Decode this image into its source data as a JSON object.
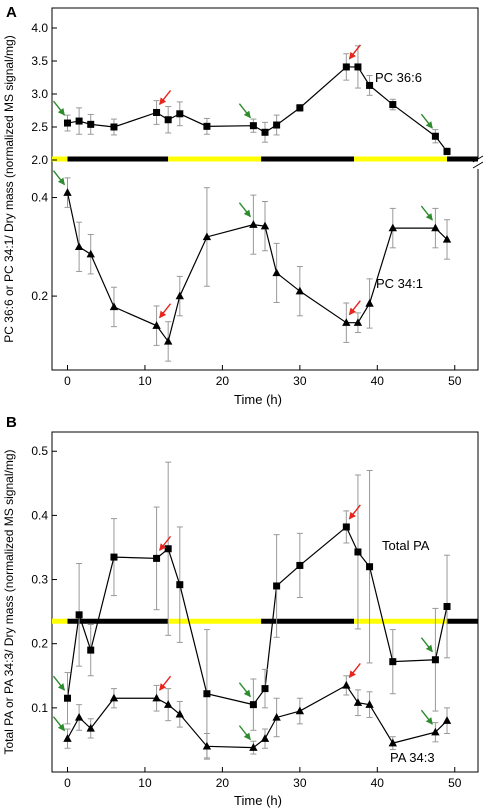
{
  "colors": {
    "line": "#000000",
    "light_bar": "#ffff00",
    "dark_bar": "#000000",
    "arrow_red": "#e8241c",
    "arrow_green": "#2e8b2e",
    "error_bar": "#999999"
  },
  "chart_data": [
    {
      "panel": "A",
      "type": "line",
      "ylabel": "PC 36:6 or PC 34:1/ Dry mass (normalized MS signal/mg)",
      "xlabel": "Time (h)",
      "xlim": [
        -2,
        53
      ],
      "x_ticks": [
        0,
        10,
        20,
        30,
        40,
        50
      ],
      "x_tick_labels": [
        "0",
        "10",
        "20",
        "30",
        "40",
        "50"
      ],
      "axis_break": true,
      "upper_ylim": [
        2.0,
        4.0
      ],
      "upper_y_ticks": [
        2.0,
        2.5,
        3.0,
        3.5,
        4.0
      ],
      "upper_y_tick_labels": [
        "2.0",
        "2.5",
        "3.0",
        "3.5",
        "4.0"
      ],
      "lower_ylim": [
        0.05,
        0.46
      ],
      "lower_y_ticks": [
        0.2,
        0.4
      ],
      "lower_y_tick_labels": [
        "0.2",
        "0.4"
      ],
      "light_dark_bar": [
        {
          "start": -2,
          "end": 0,
          "phase": "light"
        },
        {
          "start": 0,
          "end": 13,
          "phase": "dark"
        },
        {
          "start": 13,
          "end": 25,
          "phase": "light"
        },
        {
          "start": 25,
          "end": 37,
          "phase": "dark"
        },
        {
          "start": 37,
          "end": 49,
          "phase": "light"
        },
        {
          "start": 49,
          "end": 53,
          "phase": "dark"
        }
      ],
      "series": [
        {
          "name": "PC 36:6",
          "marker": "square",
          "part": "upper",
          "x": [
            0,
            1.5,
            3,
            6,
            11.5,
            13,
            14.5,
            18,
            24,
            25.5,
            27,
            30,
            36,
            37.5,
            39,
            42,
            47.5,
            49
          ],
          "y": [
            2.56,
            2.59,
            2.54,
            2.5,
            2.72,
            2.61,
            2.7,
            2.51,
            2.52,
            2.42,
            2.53,
            2.79,
            3.41,
            3.41,
            3.13,
            2.84,
            2.36,
            2.13
          ],
          "err": [
            0.12,
            0.2,
            0.15,
            0.12,
            0.18,
            0.2,
            0.18,
            0.12,
            0.1,
            0.15,
            0.15,
            0.05,
            0.2,
            0.32,
            0.15,
            0.08,
            0.1,
            0.05
          ]
        },
        {
          "name": "PC 34:1",
          "marker": "triangle",
          "part": "lower",
          "x": [
            0,
            1.5,
            3,
            6,
            11.5,
            13,
            14.5,
            18,
            24,
            25.5,
            27,
            30,
            36,
            37.5,
            39,
            42,
            47.5,
            49
          ],
          "y": [
            0.41,
            0.3,
            0.285,
            0.178,
            0.14,
            0.108,
            0.2,
            0.32,
            0.345,
            0.342,
            0.247,
            0.21,
            0.146,
            0.146,
            0.185,
            0.338,
            0.338,
            0.315
          ],
          "err": [
            0.03,
            0.05,
            0.04,
            0.04,
            0.04,
            0.04,
            0.04,
            0.1,
            0.06,
            0.05,
            0.06,
            0.05,
            0.04,
            0.02,
            0.05,
            0.04,
            0.04,
            0.04
          ]
        }
      ],
      "arrows": [
        {
          "x": 0,
          "series": "PC 36:6",
          "color": "green"
        },
        {
          "x": 11.5,
          "series": "PC 36:6",
          "color": "red"
        },
        {
          "x": 24,
          "series": "PC 36:6",
          "color": "green"
        },
        {
          "x": 36,
          "series": "PC 36:6",
          "color": "red"
        },
        {
          "x": 47.5,
          "series": "PC 36:6",
          "color": "green"
        },
        {
          "x": 0,
          "series": "PC 34:1",
          "color": "green"
        },
        {
          "x": 11.5,
          "series": "PC 34:1",
          "color": "red"
        },
        {
          "x": 24,
          "series": "PC 34:1",
          "color": "green"
        },
        {
          "x": 36,
          "series": "PC 34:1",
          "color": "red"
        },
        {
          "x": 47.5,
          "series": "PC 34:1",
          "color": "green"
        }
      ]
    },
    {
      "panel": "B",
      "type": "line",
      "ylabel": "Total PA or PA 34:3/ Dry mass (normalized MS signal/mg)",
      "xlabel": "Time (h)",
      "xlim": [
        -2,
        53
      ],
      "ylim": [
        0.0,
        0.53
      ],
      "x_ticks": [
        0,
        10,
        20,
        30,
        40,
        50
      ],
      "x_tick_labels": [
        "0",
        "10",
        "20",
        "30",
        "40",
        "50"
      ],
      "y_ticks": [
        0.1,
        0.2,
        0.3,
        0.4,
        0.5
      ],
      "y_tick_labels": [
        "0.1",
        "0.2",
        "0.3",
        "0.4",
        "0.5"
      ],
      "light_dark_bar_y": 0.235,
      "light_dark_bar": [
        {
          "start": -2,
          "end": 0,
          "phase": "light"
        },
        {
          "start": 0,
          "end": 13,
          "phase": "dark"
        },
        {
          "start": 13,
          "end": 25,
          "phase": "light"
        },
        {
          "start": 25,
          "end": 37,
          "phase": "dark"
        },
        {
          "start": 37,
          "end": 49,
          "phase": "light"
        },
        {
          "start": 49,
          "end": 53,
          "phase": "dark"
        }
      ],
      "series": [
        {
          "name": "Total PA",
          "marker": "square",
          "x": [
            0,
            1.5,
            3,
            6,
            11.5,
            13,
            14.5,
            18,
            24,
            25.5,
            27,
            30,
            36,
            37.5,
            39,
            42,
            47.5,
            49
          ],
          "y": [
            0.115,
            0.245,
            0.19,
            0.335,
            0.333,
            0.348,
            0.292,
            0.122,
            0.105,
            0.13,
            0.29,
            0.322,
            0.382,
            0.343,
            0.32,
            0.172,
            0.175,
            0.258
          ],
          "err": [
            0.04,
            0.08,
            0.04,
            0.06,
            0.08,
            0.135,
            0.09,
            0.1,
            0.04,
            0.03,
            0.08,
            0.05,
            0.025,
            0.12,
            0.15,
            0.05,
            0.08,
            0.08
          ]
        },
        {
          "name": "PA 34:3",
          "marker": "triangle",
          "x": [
            0,
            1.5,
            3,
            6,
            11.5,
            13,
            14.5,
            18,
            24,
            25.5,
            27,
            30,
            36,
            37.5,
            39,
            42,
            47.5,
            49
          ],
          "y": [
            0.052,
            0.085,
            0.068,
            0.115,
            0.115,
            0.105,
            0.09,
            0.04,
            0.038,
            0.052,
            0.085,
            0.095,
            0.135,
            0.108,
            0.105,
            0.045,
            0.062,
            0.08
          ],
          "err": [
            0.015,
            0.02,
            0.015,
            0.015,
            0.02,
            0.025,
            0.02,
            0.02,
            0.01,
            0.015,
            0.03,
            0.02,
            0.015,
            0.02,
            0.02,
            0.01,
            0.015,
            0.02
          ]
        }
      ],
      "arrows": [
        {
          "x": 0,
          "series": "Total PA",
          "color": "green"
        },
        {
          "x": 11.5,
          "series": "Total PA",
          "color": "red"
        },
        {
          "x": 24,
          "series": "Total PA",
          "color": "green"
        },
        {
          "x": 36,
          "series": "Total PA",
          "color": "red"
        },
        {
          "x": 47.5,
          "series": "Total PA",
          "color": "green"
        },
        {
          "x": 0,
          "series": "PA 34:3",
          "color": "green"
        },
        {
          "x": 11.5,
          "series": "PA 34:3",
          "color": "red"
        },
        {
          "x": 24,
          "series": "PA 34:3",
          "color": "green"
        },
        {
          "x": 36,
          "series": "PA 34:3",
          "color": "red"
        },
        {
          "x": 47.5,
          "series": "PA 34:3",
          "color": "green"
        }
      ]
    }
  ]
}
